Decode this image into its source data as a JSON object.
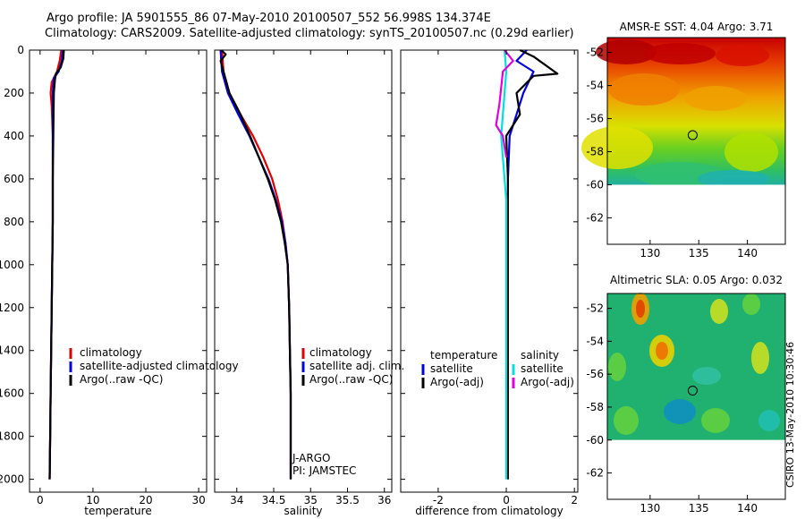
{
  "header": {
    "title_line1": "Argo profile: JA 5901555_86 07-May-2010 20100507_552 56.998S 134.374E",
    "title_line2": "Climatology: CARS2009. Satellite-adjusted climatology: synTS_20100507.nc (0.29d earlier)"
  },
  "stamp": "CSIRO 13-May-2010 10:30:46",
  "chart_data": [
    {
      "type": "line",
      "id": "temperature",
      "xlabel": "temperature",
      "ylabel": "",
      "xlim": [
        -2,
        31.5
      ],
      "ylim": [
        2060,
        0
      ],
      "xticks": [
        0,
        10,
        20,
        30
      ],
      "yticks": [
        0,
        200,
        400,
        600,
        800,
        1000,
        1200,
        1400,
        1600,
        1800,
        2000
      ],
      "legend": {
        "position": "bottom-right",
        "entries": [
          "climatology",
          "satellite-adjusted climatology",
          "Argo(..raw -QC)"
        ]
      },
      "series": [
        {
          "name": "climatology",
          "color": "#e00000",
          "points": [
            [
              4.0,
              0
            ],
            [
              3.7,
              50
            ],
            [
              3.2,
              100
            ],
            [
              2.2,
              150
            ],
            [
              2.0,
              200
            ],
            [
              2.2,
              260
            ],
            [
              2.4,
              400
            ],
            [
              2.4,
              600
            ],
            [
              2.4,
              800
            ],
            [
              2.3,
              1000
            ],
            [
              2.2,
              1200
            ],
            [
              2.1,
              1400
            ],
            [
              2.0,
              1600
            ],
            [
              1.9,
              1800
            ],
            [
              1.8,
              2000
            ]
          ]
        },
        {
          "name": "satellite-adjusted climatology",
          "color": "#0000e0",
          "points": [
            [
              4.3,
              0
            ],
            [
              4.1,
              50
            ],
            [
              3.5,
              100
            ],
            [
              2.6,
              130
            ],
            [
              2.4,
              200
            ],
            [
              2.4,
              400
            ],
            [
              2.4,
              600
            ],
            [
              2.4,
              800
            ],
            [
              2.3,
              1000
            ],
            [
              2.2,
              1200
            ],
            [
              2.1,
              1400
            ],
            [
              2.0,
              1600
            ],
            [
              1.9,
              1800
            ],
            [
              1.8,
              2000
            ]
          ]
        },
        {
          "name": "Argo(..raw -QC)",
          "color": "#000000",
          "points": [
            [
              4.5,
              0
            ],
            [
              4.4,
              40
            ],
            [
              3.9,
              80
            ],
            [
              3.0,
              110
            ],
            [
              2.8,
              140
            ],
            [
              2.6,
              200
            ],
            [
              2.5,
              400
            ],
            [
              2.4,
              600
            ],
            [
              2.4,
              800
            ],
            [
              2.3,
              1000
            ],
            [
              2.2,
              1200
            ],
            [
              2.1,
              1400
            ],
            [
              2.0,
              1600
            ],
            [
              1.9,
              1800
            ],
            [
              1.8,
              2000
            ]
          ]
        }
      ]
    },
    {
      "type": "line",
      "id": "salinity",
      "xlabel": "salinity",
      "xlim": [
        33.7,
        36.1
      ],
      "ylim": [
        2060,
        0
      ],
      "xticks": [
        34,
        34.5,
        35,
        35.5,
        36
      ],
      "legend": {
        "position": "bottom-right",
        "entries": [
          "climatology",
          "satellite adj. clim.",
          "Argo(..raw -QC)"
        ]
      },
      "annotation": [
        "J-ARGO",
        "PI: JAMSTEC"
      ],
      "series": [
        {
          "name": "climatology",
          "color": "#e00000",
          "points": [
            [
              33.8,
              0
            ],
            [
              33.82,
              100
            ],
            [
              33.9,
              200
            ],
            [
              34.05,
              300
            ],
            [
              34.22,
              400
            ],
            [
              34.36,
              500
            ],
            [
              34.48,
              600
            ],
            [
              34.56,
              700
            ],
            [
              34.62,
              800
            ],
            [
              34.66,
              900
            ],
            [
              34.69,
              1000
            ],
            [
              34.71,
              1200
            ],
            [
              34.72,
              1400
            ],
            [
              34.73,
              1600
            ],
            [
              34.73,
              1800
            ],
            [
              34.73,
              2000
            ]
          ]
        },
        {
          "name": "satellite adj. clim.",
          "color": "#0000e0",
          "points": [
            [
              33.78,
              0
            ],
            [
              33.8,
              100
            ],
            [
              33.88,
              200
            ],
            [
              34.02,
              300
            ],
            [
              34.17,
              400
            ],
            [
              34.3,
              500
            ],
            [
              34.43,
              600
            ],
            [
              34.53,
              700
            ],
            [
              34.61,
              800
            ],
            [
              34.66,
              900
            ],
            [
              34.69,
              1000
            ],
            [
              34.71,
              1200
            ],
            [
              34.72,
              1400
            ],
            [
              34.73,
              1600
            ],
            [
              34.73,
              1800
            ],
            [
              34.73,
              2000
            ]
          ]
        },
        {
          "name": "Argo(..raw -QC)",
          "color": "#000000",
          "points": [
            [
              33.79,
              0
            ],
            [
              33.85,
              20
            ],
            [
              33.78,
              50
            ],
            [
              33.82,
              100
            ],
            [
              33.9,
              200
            ],
            [
              34.05,
              300
            ],
            [
              34.18,
              400
            ],
            [
              34.3,
              500
            ],
            [
              34.42,
              600
            ],
            [
              34.52,
              700
            ],
            [
              34.6,
              800
            ],
            [
              34.65,
              900
            ],
            [
              34.69,
              1000
            ],
            [
              34.71,
              1200
            ],
            [
              34.72,
              1400
            ],
            [
              34.73,
              1600
            ],
            [
              34.73,
              1800
            ],
            [
              34.73,
              2000
            ]
          ]
        }
      ]
    },
    {
      "type": "line",
      "id": "difference",
      "xlabel": "difference from climatology",
      "xlim": [
        -3.1,
        2.1
      ],
      "ylim": [
        2060,
        0
      ],
      "xticks": [
        -2,
        0,
        2
      ],
      "legend": {
        "position": "bottom",
        "entries": [
          "temperature",
          "satellite",
          "Argo(-adj)",
          "salinity",
          "satellite",
          "Argo(-adj)"
        ]
      },
      "series": [
        {
          "name": "temperature satellite",
          "color": "#0000e0",
          "points": [
            [
              0.6,
              0
            ],
            [
              0.3,
              50
            ],
            [
              0.8,
              100
            ],
            [
              0.5,
              200
            ],
            [
              0.3,
              300
            ],
            [
              0.1,
              400
            ],
            [
              0.05,
              600
            ],
            [
              0.05,
              1000
            ],
            [
              0.05,
              1500
            ],
            [
              0.05,
              2000
            ]
          ]
        },
        {
          "name": "temperature Argo(-adj)",
          "color": "#000000",
          "points": [
            [
              0.4,
              0
            ],
            [
              0.8,
              30
            ],
            [
              1.5,
              110
            ],
            [
              0.8,
              120
            ],
            [
              0.3,
              200
            ],
            [
              0.4,
              300
            ],
            [
              0.0,
              400
            ],
            [
              0.05,
              600
            ],
            [
              0.05,
              1000
            ],
            [
              0.05,
              2000
            ]
          ]
        },
        {
          "name": "salinity satellite",
          "color": "#00e0e0",
          "points": [
            [
              -0.05,
              0
            ],
            [
              0.0,
              100
            ],
            [
              -0.05,
              200
            ],
            [
              -0.1,
              300
            ],
            [
              -0.15,
              400
            ],
            [
              -0.1,
              500
            ],
            [
              0.0,
              700
            ],
            [
              0.0,
              1000
            ],
            [
              0.0,
              2000
            ]
          ]
        },
        {
          "name": "salinity Argo(-adj)",
          "color": "#e000e0",
          "points": [
            [
              -0.05,
              0
            ],
            [
              0.2,
              50
            ],
            [
              -0.1,
              100
            ],
            [
              -0.2,
              250
            ],
            [
              -0.3,
              350
            ],
            [
              -0.1,
              400
            ],
            [
              0.0,
              500
            ]
          ]
        }
      ]
    },
    {
      "type": "heatmap",
      "id": "sst-map",
      "title": "AMSR-E SST: 4.04 Argo: 3.71",
      "xlim": [
        125.6,
        143.9
      ],
      "ylim": [
        -63.6,
        -51.1
      ],
      "xticks": [
        130,
        135,
        140
      ],
      "yticks": [
        -52,
        -54,
        -56,
        -58,
        -60,
        -62
      ],
      "data_extent_lat_min": -60,
      "marker": {
        "lon": 134.374,
        "lat": -56.998
      }
    },
    {
      "type": "heatmap",
      "id": "sla-map",
      "title": "Altimetric SLA: 0.05 Argo: 0.032",
      "xlim": [
        125.6,
        143.9
      ],
      "ylim": [
        -63.6,
        -51.1
      ],
      "xticks": [
        130,
        135,
        140
      ],
      "yticks": [
        -52,
        -54,
        -56,
        -58,
        -60,
        -62
      ],
      "data_extent_lat_min": -60,
      "marker": {
        "lon": 134.374,
        "lat": -56.998
      }
    }
  ]
}
